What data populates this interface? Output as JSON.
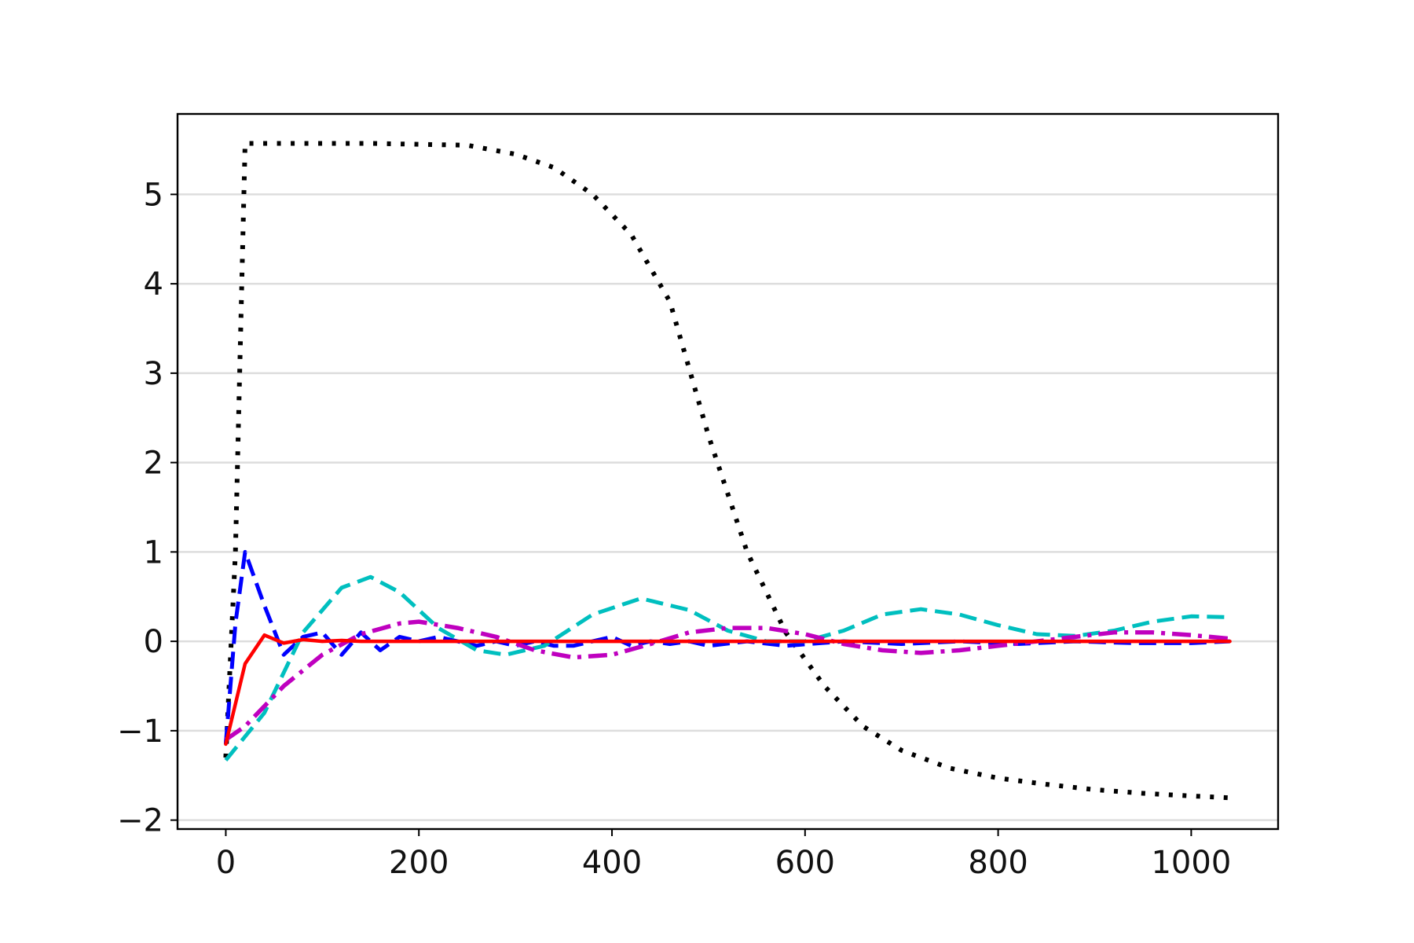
{
  "chart_data": {
    "type": "line",
    "title": "",
    "xlabel": "",
    "ylabel": "",
    "xlim": [
      -50,
      1090
    ],
    "ylim": [
      -2.1,
      5.9
    ],
    "xticks": [
      0,
      200,
      400,
      600,
      800,
      1000
    ],
    "yticks": [
      -2,
      -1,
      0,
      1,
      2,
      3,
      4,
      5
    ],
    "ytick_labels": [
      "−2",
      "−1",
      "0",
      "1",
      "2",
      "3",
      "4",
      "5"
    ],
    "grid": "horizontal",
    "series": [
      {
        "color": "#000000",
        "style": "dotted",
        "x": [
          0,
          10,
          20,
          40,
          80,
          150,
          250,
          300,
          340,
          380,
          420,
          460,
          500,
          540,
          580,
          620,
          660,
          700,
          750,
          800,
          850,
          900,
          950,
          1000,
          1040
        ],
        "y": [
          -1.3,
          1.0,
          5.57,
          5.57,
          5.57,
          5.57,
          5.55,
          5.45,
          5.3,
          5.0,
          4.55,
          3.8,
          2.3,
          1.0,
          0.1,
          -0.5,
          -0.95,
          -1.22,
          -1.42,
          -1.53,
          -1.6,
          -1.66,
          -1.7,
          -1.73,
          -1.75
        ]
      },
      {
        "color": "#0000ff",
        "style": "dashed",
        "x": [
          0,
          10,
          20,
          40,
          60,
          80,
          100,
          120,
          140,
          160,
          180,
          200,
          220,
          240,
          260,
          280,
          300,
          320,
          340,
          360,
          380,
          400,
          420,
          440,
          460,
          480,
          500,
          540,
          580,
          640,
          700,
          760,
          820,
          880,
          940,
          1000,
          1040
        ],
        "y": [
          -1.15,
          0.2,
          1.0,
          0.4,
          -0.15,
          0.05,
          0.1,
          -0.15,
          0.1,
          -0.1,
          0.05,
          0.0,
          0.05,
          0.0,
          -0.05,
          0.0,
          -0.05,
          0.0,
          -0.05,
          -0.05,
          0.0,
          0.05,
          -0.05,
          0.0,
          -0.03,
          0.0,
          -0.05,
          0.0,
          -0.05,
          0.0,
          -0.03,
          0.0,
          -0.03,
          0.0,
          -0.02,
          -0.02,
          0.0
        ]
      },
      {
        "color": "#00bfbf",
        "style": "dashed",
        "x": [
          0,
          40,
          80,
          120,
          150,
          180,
          220,
          260,
          290,
          330,
          380,
          430,
          480,
          520,
          560,
          600,
          640,
          680,
          720,
          760,
          800,
          840,
          880,
          920,
          960,
          1000,
          1040
        ],
        "y": [
          -1.33,
          -0.8,
          0.1,
          0.6,
          0.72,
          0.55,
          0.15,
          -0.1,
          -0.15,
          -0.05,
          0.3,
          0.48,
          0.35,
          0.12,
          0.0,
          0.0,
          0.12,
          0.3,
          0.36,
          0.3,
          0.18,
          0.08,
          0.06,
          0.12,
          0.22,
          0.28,
          0.27
        ]
      },
      {
        "color": "#bf00bf",
        "style": "dashdot",
        "x": [
          0,
          20,
          60,
          100,
          140,
          180,
          200,
          240,
          280,
          320,
          360,
          400,
          440,
          480,
          520,
          560,
          600,
          640,
          680,
          720,
          760,
          800,
          840,
          880,
          920,
          960,
          1000,
          1040
        ],
        "y": [
          -1.1,
          -0.95,
          -0.5,
          -0.15,
          0.08,
          0.2,
          0.22,
          0.15,
          0.05,
          -0.1,
          -0.18,
          -0.15,
          -0.03,
          0.1,
          0.15,
          0.15,
          0.08,
          -0.03,
          -0.1,
          -0.13,
          -0.1,
          -0.05,
          0.0,
          0.05,
          0.1,
          0.1,
          0.07,
          0.03
        ]
      },
      {
        "color": "#ff0000",
        "style": "solid",
        "x": [
          0,
          20,
          40,
          60,
          80,
          100,
          120,
          140,
          180,
          220,
          300,
          400,
          500,
          600,
          700,
          800,
          900,
          1000,
          1040
        ],
        "y": [
          -1.15,
          -0.25,
          0.07,
          -0.02,
          0.02,
          0.0,
          0.01,
          0.0,
          0.0,
          0.0,
          0.0,
          0.0,
          0.0,
          0.0,
          0.0,
          0.0,
          0.0,
          0.0,
          0.0
        ]
      }
    ]
  }
}
